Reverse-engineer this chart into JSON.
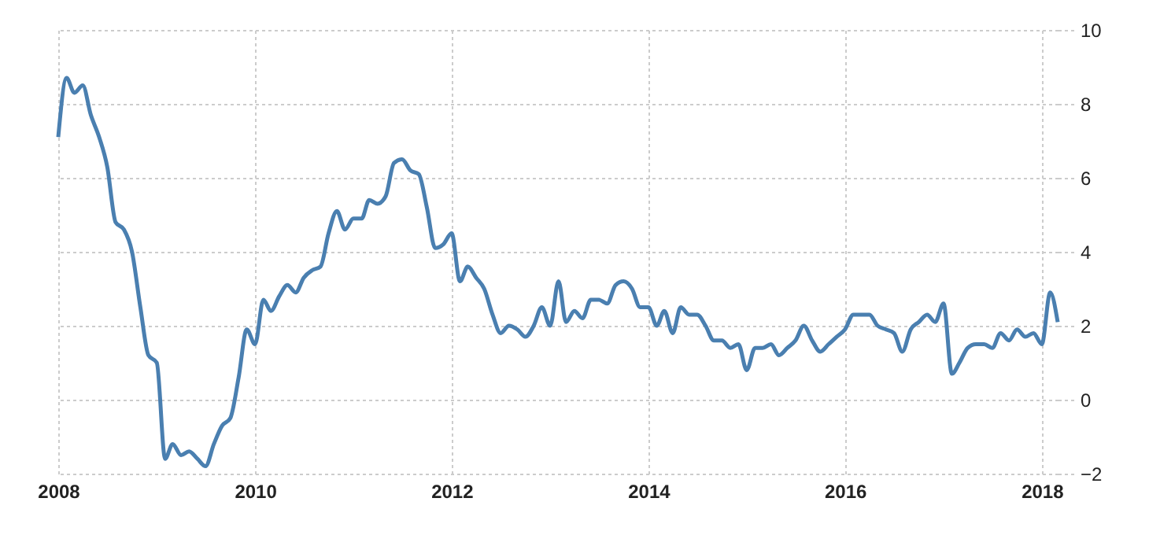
{
  "chart_data": {
    "type": "line",
    "x": [
      "2008-01",
      "2008-02",
      "2008-03",
      "2008-04",
      "2008-05",
      "2008-06",
      "2008-07",
      "2008-08",
      "2008-09",
      "2008-10",
      "2008-11",
      "2008-12",
      "2009-01",
      "2009-02",
      "2009-03",
      "2009-04",
      "2009-05",
      "2009-06",
      "2009-07",
      "2009-08",
      "2009-09",
      "2009-10",
      "2009-11",
      "2009-12",
      "2010-01",
      "2010-02",
      "2010-03",
      "2010-04",
      "2010-05",
      "2010-06",
      "2010-07",
      "2010-08",
      "2010-09",
      "2010-10",
      "2010-11",
      "2010-12",
      "2011-01",
      "2011-02",
      "2011-03",
      "2011-04",
      "2011-05",
      "2011-06",
      "2011-07",
      "2011-08",
      "2011-09",
      "2011-10",
      "2011-11",
      "2011-12",
      "2012-01",
      "2012-02",
      "2012-03",
      "2012-04",
      "2012-05",
      "2012-06",
      "2012-07",
      "2012-08",
      "2012-09",
      "2012-10",
      "2012-11",
      "2012-12",
      "2013-01",
      "2013-02",
      "2013-03",
      "2013-04",
      "2013-05",
      "2013-06",
      "2013-07",
      "2013-08",
      "2013-09",
      "2013-10",
      "2013-11",
      "2013-12",
      "2014-01",
      "2014-02",
      "2014-03",
      "2014-04",
      "2014-05",
      "2014-06",
      "2014-07",
      "2014-08",
      "2014-09",
      "2014-10",
      "2014-11",
      "2014-12",
      "2015-01",
      "2015-02",
      "2015-03",
      "2015-04",
      "2015-05",
      "2015-06",
      "2015-07",
      "2015-08",
      "2015-09",
      "2015-10",
      "2015-11",
      "2015-12",
      "2016-01",
      "2016-02",
      "2016-03",
      "2016-04",
      "2016-05",
      "2016-06",
      "2016-07",
      "2016-08",
      "2016-09",
      "2016-10",
      "2016-11",
      "2016-12",
      "2017-01",
      "2017-02",
      "2017-03",
      "2017-04",
      "2017-05",
      "2017-06",
      "2017-07",
      "2017-08",
      "2017-09",
      "2017-10",
      "2017-11",
      "2017-12",
      "2018-01",
      "2018-02",
      "2018-03"
    ],
    "series": [
      {
        "color": "#4a7fb0",
        "values": [
          7.1,
          8.7,
          8.3,
          8.5,
          7.7,
          7.1,
          6.3,
          4.8,
          4.6,
          4.0,
          2.5,
          1.2,
          1.0,
          -1.6,
          -1.2,
          -1.5,
          -1.4,
          -1.6,
          -1.8,
          -1.2,
          -0.7,
          -0.5,
          0.6,
          1.9,
          1.5,
          2.7,
          2.4,
          2.8,
          3.1,
          2.9,
          3.3,
          3.5,
          3.6,
          4.5,
          5.1,
          4.6,
          4.9,
          4.9,
          5.4,
          5.3,
          5.5,
          6.4,
          6.5,
          6.2,
          6.1,
          5.2,
          4.1,
          4.2,
          4.5,
          3.2,
          3.6,
          3.3,
          3.0,
          2.3,
          1.8,
          2.0,
          1.9,
          1.7,
          2.0,
          2.5,
          2.0,
          3.2,
          2.1,
          2.4,
          2.2,
          2.7,
          2.7,
          2.6,
          3.1,
          3.2,
          3.0,
          2.5,
          2.5,
          2.0,
          2.4,
          1.8,
          2.5,
          2.3,
          2.3,
          2.0,
          1.6,
          1.6,
          1.4,
          1.5,
          0.8,
          1.4,
          1.4,
          1.5,
          1.2,
          1.4,
          1.6,
          2.0,
          1.6,
          1.3,
          1.5,
          1.7,
          1.9,
          2.3,
          2.3,
          2.3,
          2.0,
          1.9,
          1.8,
          1.3,
          1.9,
          2.1,
          2.3,
          2.1,
          2.6,
          0.7,
          1.0,
          1.4,
          1.5,
          1.5,
          1.4,
          1.8,
          1.6,
          1.9,
          1.7,
          1.8,
          1.5,
          2.9,
          2.1
        ]
      }
    ],
    "xlim": [
      "2008-01",
      "2018-03"
    ],
    "xticks": [
      "2008",
      "2010",
      "2012",
      "2014",
      "2016",
      "2018"
    ],
    "ylim": [
      -2,
      10
    ],
    "yticks": [
      -2,
      0,
      2,
      4,
      6,
      8,
      10
    ],
    "grid": true,
    "marker": "none",
    "line_style": "solid"
  }
}
